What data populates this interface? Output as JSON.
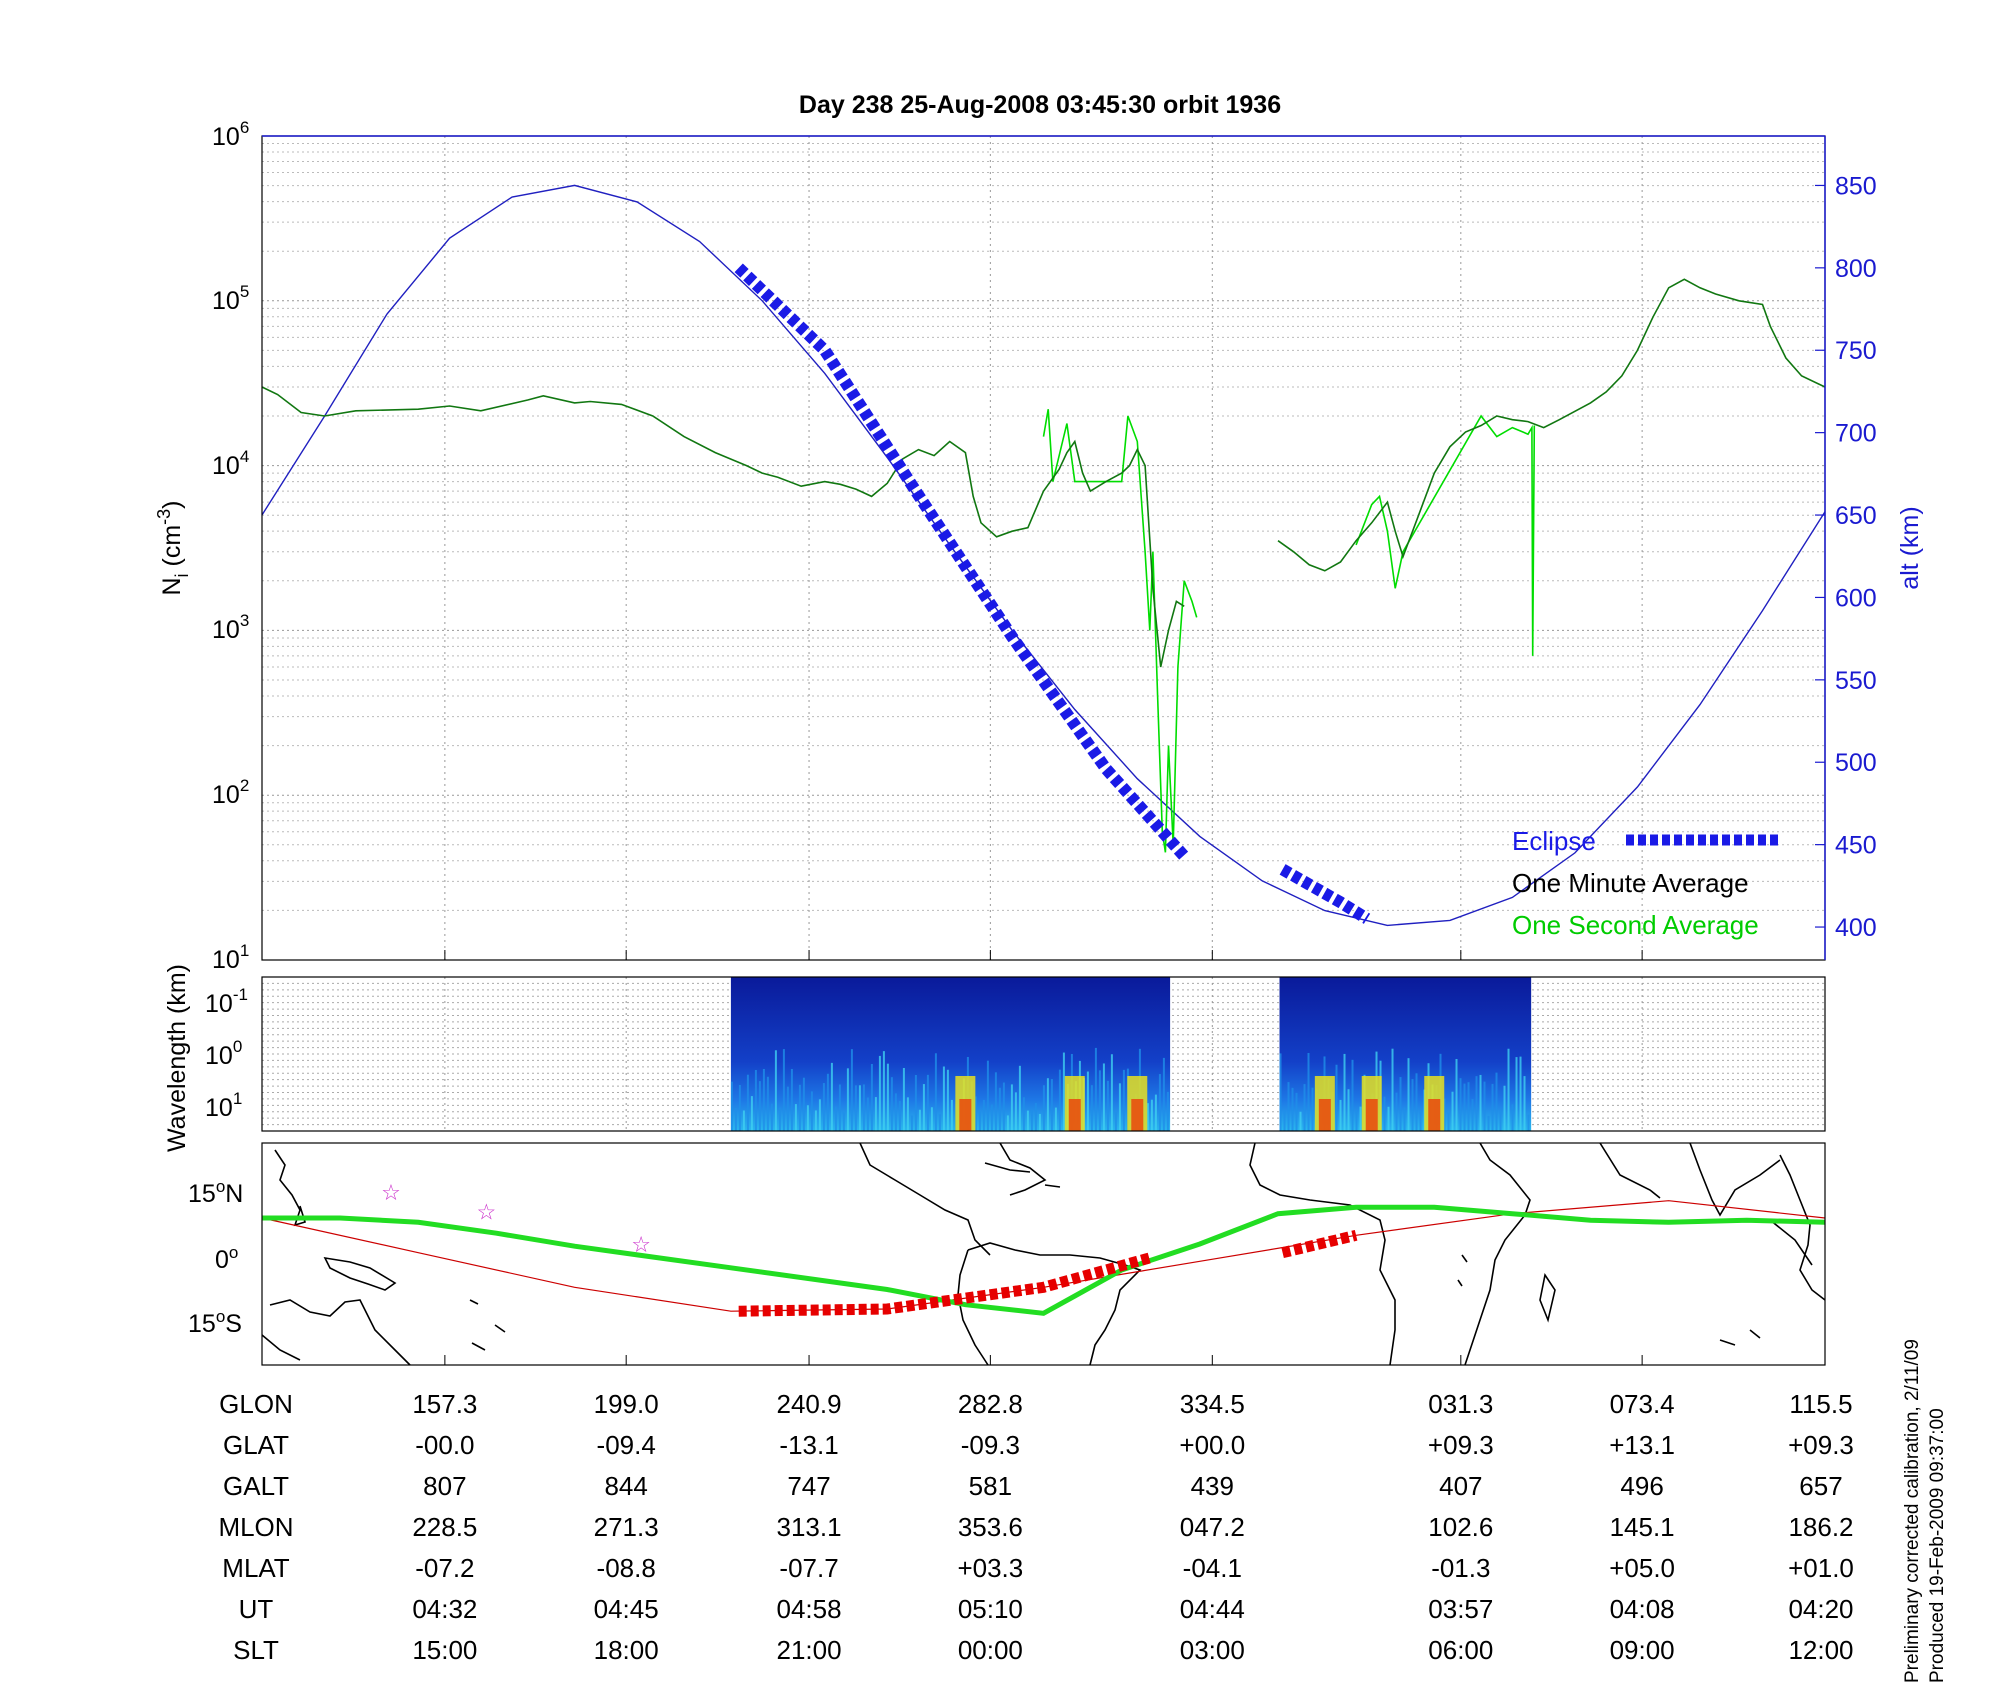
{
  "chart_data": [
    {
      "type": "line",
      "title": "Day 238  25-Aug-2008 03:45:30   orbit 1936",
      "ylabel": "N_i (cm^-3)",
      "yscale": "log",
      "ylim": [
        10,
        1000000
      ],
      "y_ticks": [
        "10^1",
        "10^2",
        "10^3",
        "10^4",
        "10^5",
        "10^6"
      ],
      "y2label": "alt (km)",
      "y2lim": [
        380,
        880
      ],
      "y2_ticks": [
        "400",
        "450",
        "500",
        "550",
        "600",
        "650",
        "700",
        "750",
        "800",
        "850"
      ],
      "x_index_range": [
        0,
        1
      ],
      "x_grid_positions": [
        0.117,
        0.233,
        0.35,
        0.466,
        0.608,
        0.767,
        0.883,
        1.0
      ],
      "grid": true,
      "legend_position": "bottom-right",
      "legend": [
        "Eclipse",
        "One Minute Average",
        "One Second Average"
      ],
      "colors": {
        "eclipse": "#1a1ae6",
        "minute": "#000000",
        "second": "#00dd00",
        "altitude": "#2020c0"
      },
      "series": [
        {
          "name": "One Minute Average",
          "segments": [
            [
              [
                0,
                30000
              ],
              [
                0.01,
                27000
              ],
              [
                0.025,
                21000
              ],
              [
                0.04,
                20000
              ],
              [
                0.06,
                21500
              ],
              [
                0.1,
                22000
              ],
              [
                0.12,
                23000
              ],
              [
                0.14,
                21500
              ],
              [
                0.17,
                25000
              ],
              [
                0.18,
                26500
              ],
              [
                0.2,
                24000
              ],
              [
                0.21,
                24500
              ],
              [
                0.23,
                23500
              ],
              [
                0.25,
                20000
              ],
              [
                0.27,
                15000
              ],
              [
                0.29,
                12000
              ],
              [
                0.31,
                10000
              ],
              [
                0.32,
                9000
              ],
              [
                0.33,
                8500
              ],
              [
                0.345,
                7500
              ],
              [
                0.36,
                8000
              ],
              [
                0.37,
                7700
              ],
              [
                0.38,
                7200
              ],
              [
                0.39,
                6500
              ],
              [
                0.4,
                7800
              ],
              [
                0.41,
                11000
              ],
              [
                0.42,
                12500
              ],
              [
                0.43,
                11500
              ],
              [
                0.44,
                14000
              ],
              [
                0.45,
                12000
              ],
              [
                0.455,
                6500
              ],
              [
                0.46,
                4500
              ],
              [
                0.47,
                3700
              ],
              [
                0.48,
                4000
              ],
              [
                0.49,
                4200
              ],
              [
                0.5,
                7000
              ],
              [
                0.51,
                9500
              ],
              [
                0.515,
                12000
              ],
              [
                0.52,
                14000
              ],
              [
                0.525,
                9000
              ],
              [
                0.53,
                7000
              ],
              [
                0.54,
                8000
              ],
              [
                0.55,
                9000
              ],
              [
                0.555,
                10000
              ],
              [
                0.56,
                12500
              ],
              [
                0.565,
                10000
              ],
              [
                0.57,
                1800
              ],
              [
                0.575,
                600
              ],
              [
                0.58,
                1000
              ],
              [
                0.585,
                1500
              ],
              [
                0.59,
                1400
              ]
            ],
            [
              [
                0.65,
                3500
              ],
              [
                0.66,
                3000
              ],
              [
                0.67,
                2500
              ],
              [
                0.68,
                2300
              ],
              [
                0.69,
                2600
              ],
              [
                0.7,
                3500
              ],
              [
                0.71,
                4500
              ],
              [
                0.72,
                6000
              ],
              [
                0.725,
                4000
              ],
              [
                0.73,
                2800
              ],
              [
                0.74,
                5000
              ],
              [
                0.75,
                9000
              ],
              [
                0.76,
                13000
              ],
              [
                0.77,
                16000
              ],
              [
                0.78,
                17500
              ],
              [
                0.79,
                20000
              ],
              [
                0.8,
                19000
              ],
              [
                0.81,
                18500
              ],
              [
                0.82,
                17000
              ],
              [
                0.83,
                19000
              ],
              [
                0.85,
                24000
              ],
              [
                0.86,
                28000
              ],
              [
                0.87,
                35000
              ],
              [
                0.88,
                50000
              ],
              [
                0.89,
                80000
              ],
              [
                0.9,
                120000
              ],
              [
                0.91,
                135000
              ],
              [
                0.92,
                120000
              ],
              [
                0.93,
                110000
              ],
              [
                0.945,
                100000
              ],
              [
                0.96,
                95000
              ],
              [
                0.965,
                70000
              ],
              [
                0.975,
                45000
              ],
              [
                0.985,
                35000
              ],
              [
                1.0,
                30000
              ]
            ]
          ]
        },
        {
          "name": "One Second Average",
          "segments": [
            [
              [
                0.5,
                15000
              ],
              [
                0.503,
                22000
              ],
              [
                0.506,
                8000
              ],
              [
                0.515,
                18000
              ],
              [
                0.52,
                8000
              ],
              [
                0.55,
                8000
              ],
              [
                0.554,
                20000
              ],
              [
                0.56,
                14000
              ],
              [
                0.565,
                3000
              ],
              [
                0.568,
                1000
              ],
              [
                0.57,
                3000
              ],
              [
                0.573,
                400
              ],
              [
                0.576,
                60
              ],
              [
                0.578,
                45
              ],
              [
                0.58,
                200
              ],
              [
                0.583,
                50
              ],
              [
                0.586,
                600
              ],
              [
                0.59,
                2000
              ],
              [
                0.595,
                1500
              ],
              [
                0.598,
                1200
              ]
            ],
            [
              [
                0.7,
                3300
              ],
              [
                0.71,
                5800
              ],
              [
                0.715,
                6500
              ],
              [
                0.72,
                4000
              ],
              [
                0.725,
                1800
              ],
              [
                0.73,
                3000
              ],
              [
                0.78,
                20000
              ],
              [
                0.79,
                15000
              ],
              [
                0.8,
                17000
              ],
              [
                0.81,
                15500
              ],
              [
                0.8125,
                17000
              ],
              [
                0.813,
                700
              ],
              [
                0.814,
                17500
              ]
            ]
          ]
        },
        {
          "name": "Eclipse",
          "segments": [
            [
              [
                0.305,
                800
              ],
              [
                0.36,
                750
              ],
              [
                0.42,
                662
              ],
              [
                0.48,
                576
              ],
              [
                0.54,
                496
              ],
              [
                0.59,
                443
              ]
            ],
            [
              [
                0.653,
                435
              ],
              [
                0.69,
                415
              ],
              [
                0.707,
                405
              ]
            ]
          ]
        },
        {
          "name": "altitude",
          "values": [
            [
              0,
              650
            ],
            [
              0.04,
              710
            ],
            [
              0.08,
              772
            ],
            [
              0.12,
              818
            ],
            [
              0.16,
              843
            ],
            [
              0.2,
              850
            ],
            [
              0.24,
              840
            ],
            [
              0.28,
              816
            ],
            [
              0.32,
              780
            ],
            [
              0.36,
              736
            ],
            [
              0.4,
              685
            ],
            [
              0.44,
              632
            ],
            [
              0.48,
              580
            ],
            [
              0.52,
              532
            ],
            [
              0.56,
              490
            ],
            [
              0.6,
              455
            ],
            [
              0.64,
              428
            ],
            [
              0.68,
              410
            ],
            [
              0.72,
              401
            ],
            [
              0.76,
              404
            ],
            [
              0.8,
              418
            ],
            [
              0.84,
              445
            ],
            [
              0.88,
              485
            ],
            [
              0.92,
              535
            ],
            [
              0.96,
              592
            ],
            [
              1.0,
              652
            ]
          ]
        }
      ]
    },
    {
      "type": "heatmap",
      "ylabel": "Wavelength (km)",
      "y_ticks": [
        "10^-1",
        "10^0",
        "10^1"
      ],
      "blocks": [
        {
          "x_from": 0.3,
          "x_to": 0.581,
          "hot_spots": [
            0.45,
            0.52,
            0.56
          ]
        },
        {
          "x_from": 0.651,
          "x_to": 0.812,
          "hot_spots": [
            0.68,
            0.71,
            0.75
          ]
        }
      ]
    },
    {
      "type": "map",
      "y_ticks": [
        "15°N",
        "0°",
        "15°S"
      ],
      "series": [
        {
          "name": "orbit-ground-track",
          "color": "#cc0000",
          "values": [
            [
              0,
              9
            ],
            [
              0.1,
              1
            ],
            [
              0.2,
              -7
            ],
            [
              0.3,
              -12.5
            ],
            [
              0.4,
              -12
            ],
            [
              0.5,
              -7
            ],
            [
              0.6,
              -1
            ],
            [
              0.7,
              5
            ],
            [
              0.8,
              10
            ],
            [
              0.9,
              13
            ],
            [
              1.0,
              9
            ]
          ]
        },
        {
          "name": "magnetic-equator",
          "color": "#22dd22",
          "values": [
            [
              0,
              9
            ],
            [
              0.05,
              9
            ],
            [
              0.1,
              8
            ],
            [
              0.15,
              5.5
            ],
            [
              0.2,
              2.5
            ],
            [
              0.3,
              -2.5
            ],
            [
              0.4,
              -7.5
            ],
            [
              0.45,
              -11
            ],
            [
              0.5,
              -13
            ],
            [
              0.52,
              -9
            ],
            [
              0.55,
              -3
            ],
            [
              0.6,
              3
            ],
            [
              0.65,
              10
            ],
            [
              0.7,
              11.5
            ],
            [
              0.75,
              11.5
            ],
            [
              0.8,
              10
            ],
            [
              0.85,
              8.5
            ],
            [
              0.9,
              8
            ],
            [
              0.95,
              8.5
            ],
            [
              1.0,
              8
            ]
          ]
        },
        {
          "name": "eclipse-track",
          "color": "#e60000",
          "values": [
            [
              0.305,
              -12.5
            ],
            [
              0.4,
              -12
            ],
            [
              0.5,
              -7
            ],
            [
              0.57,
              0
            ]
          ]
        },
        {
          "name": "eclipse-track-2",
          "color": "#e60000",
          "values": [
            [
              0.653,
              1
            ],
            [
              0.7,
              5
            ]
          ]
        }
      ],
      "stars": [
        [
          0.082,
          15
        ],
        [
          0.143,
          10.5
        ],
        [
          0.242,
          3
        ]
      ]
    }
  ],
  "table": {
    "columns_x": [
      0.117,
      0.233,
      0.35,
      0.466,
      0.608,
      0.767,
      0.883,
      1.0
    ],
    "rows": [
      {
        "label": "GLON",
        "values": [
          "157.3",
          "199.0",
          "240.9",
          "282.8",
          "334.5",
          "031.3",
          "073.4",
          "115.5"
        ]
      },
      {
        "label": "GLAT",
        "values": [
          "-00.0",
          "-09.4",
          "-13.1",
          "-09.3",
          "+00.0",
          "+09.3",
          "+13.1",
          "+09.3"
        ]
      },
      {
        "label": "GALT",
        "values": [
          "807",
          "844",
          "747",
          "581",
          "439",
          "407",
          "496",
          "657"
        ]
      },
      {
        "label": "MLON",
        "values": [
          "228.5",
          "271.3",
          "313.1",
          "353.6",
          "047.2",
          "102.6",
          "145.1",
          "186.2"
        ]
      },
      {
        "label": "MLAT",
        "values": [
          "-07.2",
          "-08.8",
          "-07.7",
          "+03.3",
          "-04.1",
          "-01.3",
          "+05.0",
          "+01.0"
        ]
      },
      {
        "label": "UT",
        "values": [
          "04:32",
          "04:45",
          "04:58",
          "05:10",
          "04:44",
          "03:57",
          "04:08",
          "04:20"
        ]
      },
      {
        "label": "SLT",
        "values": [
          "15:00",
          "18:00",
          "21:00",
          "00:00",
          "03:00",
          "06:00",
          "09:00",
          "12:00"
        ]
      }
    ]
  },
  "footer": {
    "line1": "Preliminary corrected calibration, 2/11/09",
    "line2": "Produced 19-Feb-2009 09:37:00"
  }
}
